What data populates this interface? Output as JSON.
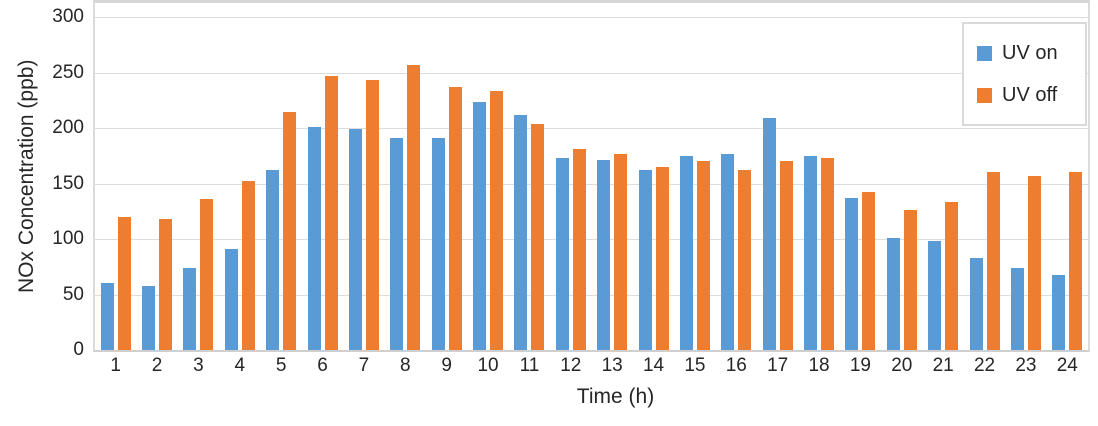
{
  "chart_data": {
    "type": "bar",
    "title": "",
    "xlabel": "Time (h)",
    "ylabel": "NOx Concentration (ppb)",
    "categories": [
      "1",
      "2",
      "3",
      "4",
      "5",
      "6",
      "7",
      "8",
      "9",
      "10",
      "11",
      "12",
      "13",
      "14",
      "15",
      "16",
      "17",
      "18",
      "19",
      "20",
      "21",
      "22",
      "23",
      "24"
    ],
    "series": [
      {
        "name": "UV on",
        "color": "#5B9BD5",
        "values": [
          60,
          58,
          74,
          91,
          162,
          201,
          199,
          191,
          191,
          223,
          212,
          173,
          171,
          162,
          175,
          177,
          209,
          175,
          137,
          101,
          98,
          83,
          74,
          68
        ]
      },
      {
        "name": "UV off",
        "color": "#ED7D31",
        "values": [
          120,
          118,
          136,
          152,
          214,
          247,
          243,
          257,
          237,
          233,
          204,
          181,
          177,
          165,
          170,
          162,
          170,
          173,
          142,
          126,
          133,
          160,
          157,
          160
        ]
      }
    ],
    "ylim": [
      0,
      300
    ],
    "yticks": [
      0,
      50,
      100,
      150,
      200,
      250,
      300
    ],
    "grid": true,
    "legend_position": "top-right"
  },
  "colors": {
    "gridline": "#dcdcdc",
    "axis_line": "#cfcfcf",
    "text": "#262626",
    "legend_border": "#d9d9d9",
    "background": "#ffffff"
  }
}
